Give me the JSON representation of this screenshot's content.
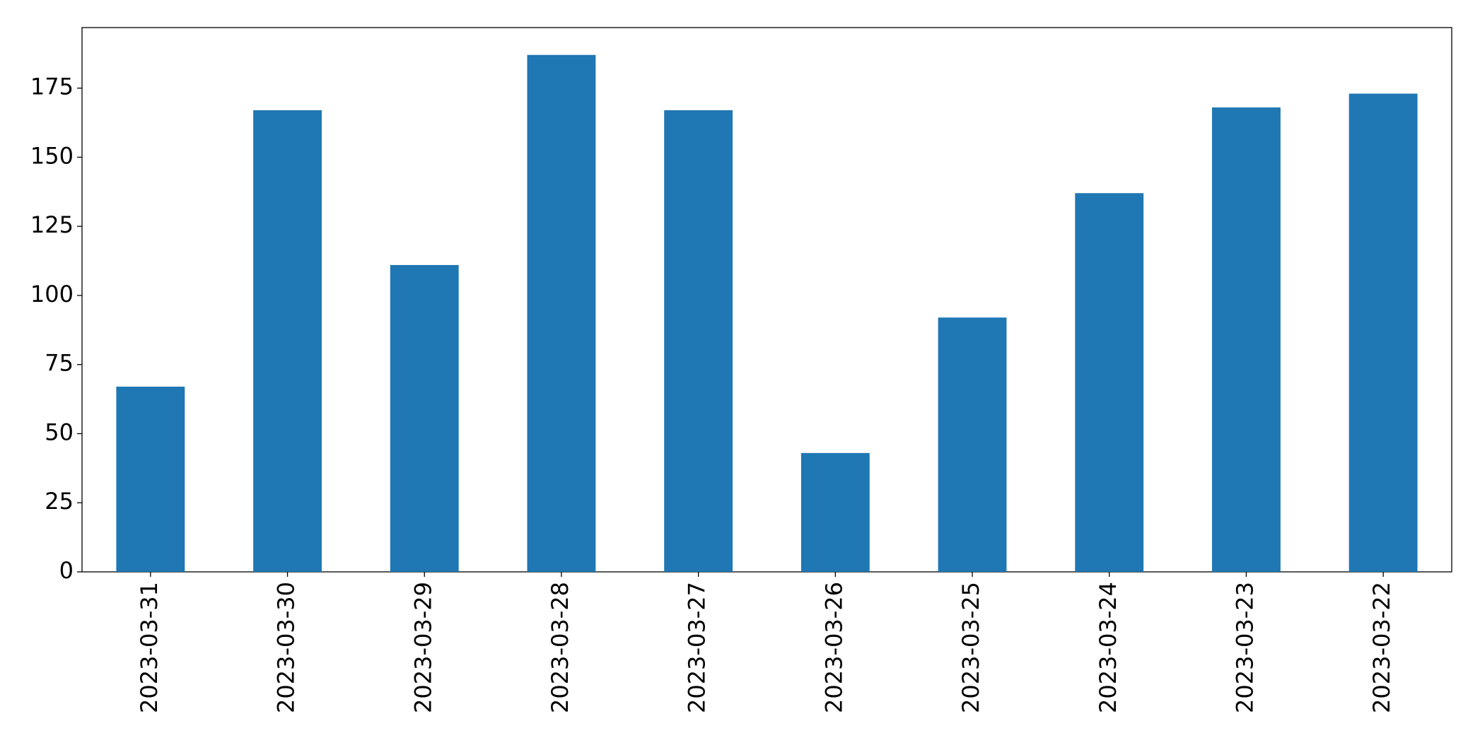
{
  "chart_data": {
    "type": "bar",
    "categories": [
      "2023-03-31",
      "2023-03-30",
      "2023-03-29",
      "2023-03-28",
      "2023-03-27",
      "2023-03-26",
      "2023-03-25",
      "2023-03-24",
      "2023-03-23",
      "2023-03-22"
    ],
    "values": [
      67,
      167,
      111,
      187,
      167,
      43,
      92,
      137,
      168,
      173
    ],
    "color": "#1f77b4",
    "ylim": [
      0,
      196.9
    ],
    "yticks": [
      0,
      25,
      50,
      75,
      100,
      125,
      150,
      175
    ],
    "grid": false
  }
}
